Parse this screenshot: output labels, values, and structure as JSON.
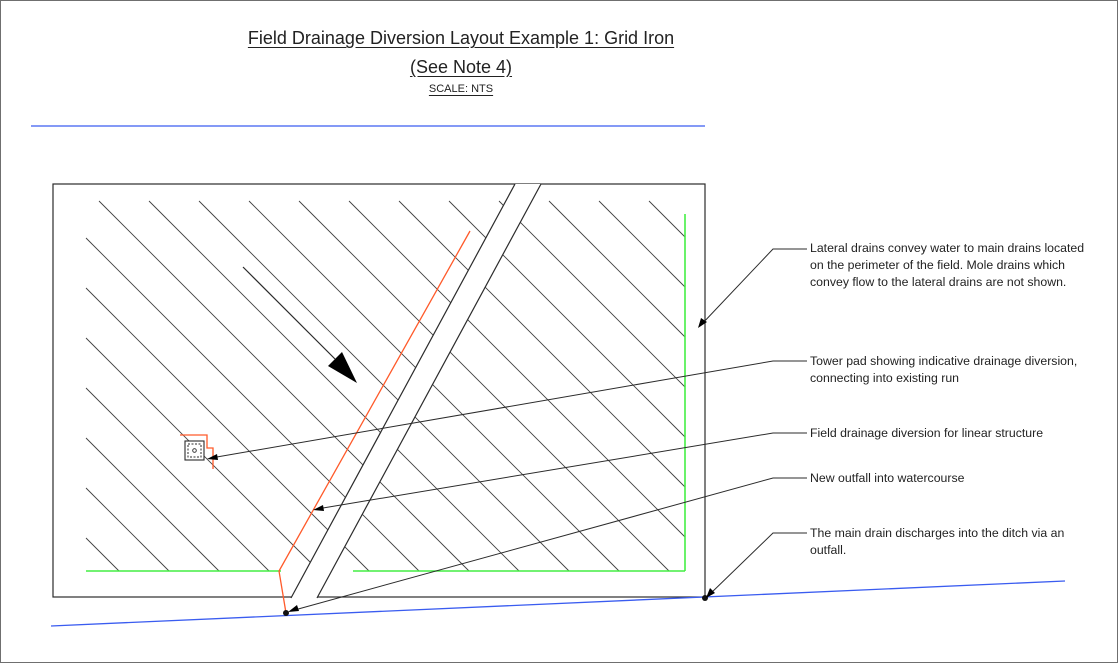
{
  "drawing": {
    "title": "Field Drainage Diversion Layout Example 1: Grid Iron",
    "subtitle": "(See Note 4)",
    "scale": "SCALE: NTS"
  },
  "callouts": [
    {
      "id": "lateral-drains",
      "text": "Lateral drains convey water to main drains located on the perimeter of the field. Mole drains which convey flow to the lateral drains are not shown."
    },
    {
      "id": "tower-pad",
      "text": "Tower pad showing indicative drainage diversion, connecting into existing run"
    },
    {
      "id": "field-diversion",
      "text": "Field drainage diversion for linear structure"
    },
    {
      "id": "new-outfall",
      "text": "New outfall into watercourse"
    },
    {
      "id": "main-drain",
      "text": "The main drain discharges into the ditch via an outfall."
    }
  ],
  "colors": {
    "ditch": "#3a5cf0",
    "main_drain": "#44ee44",
    "diversion": "#ff5a2a",
    "linework": "#2b2b2b",
    "hatch": "#404040"
  }
}
